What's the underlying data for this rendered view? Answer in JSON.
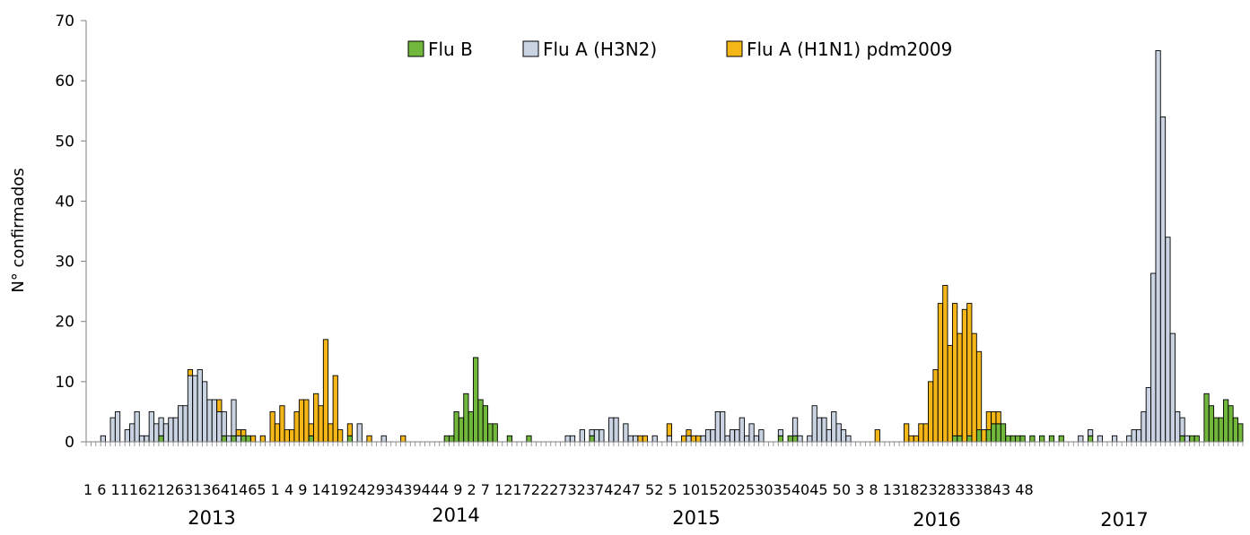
{
  "chart_data": {
    "type": "bar",
    "stacked": true,
    "title": "",
    "xlabel": "",
    "ylabel": "N° confirmados",
    "ylim": [
      0,
      70
    ],
    "y_ticks": [
      0,
      10,
      20,
      30,
      40,
      50,
      60,
      70
    ],
    "grid": false,
    "legend_position": "top-center",
    "x_tick_labels": [
      "1",
      "6",
      "11",
      "16",
      "21",
      "26",
      "31",
      "36",
      "41",
      "46",
      "51",
      "4",
      "9",
      "14",
      "19",
      "24",
      "29",
      "34",
      "39",
      "44",
      "49",
      "2",
      "7",
      "12",
      "17",
      "22",
      "27",
      "32",
      "37",
      "42",
      "47",
      "52",
      "5",
      "10",
      "15",
      "20",
      "25",
      "30",
      "35",
      "40",
      "45",
      "50",
      "3",
      "8",
      "13",
      "18",
      "23",
      "28",
      "33",
      "38",
      "43",
      "48"
    ],
    "x_tick_text": "1 6 11162126313641465 1 4 9 141924293439444 9 2 7 1217222732374247 52 5 1015202530354045 50 3 8 13182328333843 48",
    "year_labels": [
      "2013",
      "2014",
      "2015",
      "2016",
      "2017"
    ],
    "series": [
      {
        "name": "Flu B",
        "color": "#70b73c",
        "values": [
          0,
          0,
          0,
          0,
          0,
          0,
          0,
          0,
          0,
          0,
          0,
          0,
          0,
          0,
          0,
          1,
          0,
          0,
          0,
          0,
          0,
          0,
          0,
          0,
          0,
          0,
          0,
          0,
          1,
          0,
          1,
          0,
          1,
          1,
          0,
          0,
          0,
          0,
          0,
          0,
          0,
          0,
          0,
          0,
          0,
          0,
          1,
          0,
          0,
          0,
          0,
          0,
          0,
          0,
          1,
          0,
          0,
          0,
          0,
          0,
          0,
          0,
          0,
          0,
          0,
          0,
          0,
          0,
          0,
          0,
          0,
          0,
          0,
          0,
          1,
          1,
          5,
          4,
          8,
          5,
          14,
          7,
          6,
          3,
          3,
          0,
          0,
          1,
          0,
          0,
          0,
          1,
          0,
          0,
          0,
          0,
          0,
          0,
          0,
          0,
          0,
          0,
          0,
          0,
          1,
          0,
          0,
          0,
          0,
          0,
          0,
          0,
          0,
          0,
          0,
          0,
          0,
          0,
          0,
          0,
          0,
          0,
          0,
          0,
          0,
          0,
          0,
          0,
          0,
          0,
          0,
          0,
          0,
          0,
          0,
          0,
          0,
          0,
          0,
          0,
          0,
          0,
          0,
          1,
          0,
          1,
          1,
          0,
          0,
          0,
          0,
          0,
          0,
          0,
          0,
          0,
          0,
          0,
          0,
          0,
          0,
          0,
          0,
          0,
          0,
          0,
          0,
          0,
          0,
          0,
          0,
          0,
          0,
          0,
          0,
          0,
          0,
          0,
          0,
          1,
          1,
          0,
          1,
          0,
          2,
          0,
          2,
          3,
          3,
          3,
          1,
          1,
          1,
          1,
          0,
          1,
          0,
          1,
          0,
          1,
          0,
          1,
          0,
          0,
          0,
          0,
          0,
          1,
          0,
          0,
          0,
          0,
          0,
          0,
          0,
          0,
          0,
          0,
          0,
          0,
          0,
          0,
          0,
          0,
          0,
          0,
          1,
          0,
          1,
          1,
          0,
          8,
          6,
          4,
          4,
          7,
          6,
          4,
          3
        ]
      },
      {
        "name": "Flu A (H3N2)",
        "color": "#c9d3e2",
        "values": [
          0,
          0,
          0,
          1,
          0,
          4,
          5,
          0,
          2,
          3,
          5,
          1,
          1,
          5,
          3,
          3,
          3,
          4,
          4,
          6,
          6,
          11,
          11,
          12,
          10,
          7,
          7,
          5,
          4,
          1,
          6,
          1,
          0,
          0,
          0,
          0,
          0,
          0,
          0,
          0,
          0,
          0,
          0,
          0,
          0,
          0,
          0,
          0,
          0,
          0,
          0,
          0,
          0,
          0,
          0,
          0,
          3,
          0,
          0,
          0,
          0,
          1,
          0,
          0,
          0,
          0,
          0,
          0,
          0,
          0,
          0,
          0,
          0,
          0,
          0,
          0,
          0,
          0,
          0,
          0,
          0,
          0,
          0,
          0,
          0,
          0,
          0,
          0,
          0,
          0,
          0,
          0,
          0,
          0,
          0,
          0,
          0,
          0,
          0,
          1,
          1,
          0,
          2,
          0,
          1,
          2,
          2,
          0,
          4,
          4,
          0,
          3,
          1,
          1,
          0,
          0,
          0,
          1,
          0,
          0,
          1,
          0,
          0,
          0,
          1,
          0,
          0,
          1,
          2,
          2,
          5,
          5,
          1,
          2,
          2,
          4,
          1,
          3,
          1,
          2,
          0,
          0,
          0,
          1,
          0,
          0,
          3,
          1,
          0,
          1,
          6,
          4,
          4,
          2,
          5,
          3,
          2,
          1,
          0,
          0,
          0,
          0,
          0,
          0,
          0,
          0,
          0,
          0,
          0,
          0,
          0,
          0,
          0,
          0,
          0,
          0,
          0,
          0,
          0,
          0,
          0,
          0,
          0,
          0,
          0,
          0,
          0,
          0,
          0,
          0,
          0,
          0,
          0,
          0,
          0,
          0,
          0,
          0,
          0,
          0,
          0,
          0,
          0,
          0,
          0,
          1,
          0,
          1,
          0,
          1,
          0,
          0,
          1,
          0,
          0,
          1,
          2,
          2,
          5,
          9,
          28,
          65,
          54,
          34,
          18,
          5,
          3,
          1,
          0,
          0,
          0,
          0,
          0,
          0,
          0,
          0,
          0,
          0,
          0,
          0,
          0,
          0,
          0
        ]
      },
      {
        "name": "Flu A (H1N1) pdm2009",
        "color": "#f5b617",
        "values": [
          0,
          0,
          0,
          0,
          0,
          0,
          0,
          0,
          0,
          0,
          0,
          0,
          0,
          0,
          0,
          0,
          0,
          0,
          0,
          0,
          0,
          1,
          0,
          0,
          0,
          0,
          0,
          2,
          0,
          0,
          0,
          1,
          1,
          0,
          1,
          0,
          1,
          0,
          5,
          3,
          6,
          2,
          2,
          5,
          7,
          7,
          2,
          8,
          6,
          17,
          3,
          11,
          2,
          0,
          2,
          0,
          0,
          0,
          1,
          0,
          0,
          0,
          0,
          0,
          0,
          1,
          0,
          0,
          0,
          0,
          0,
          0,
          0,
          0,
          0,
          0,
          0,
          0,
          0,
          0,
          0,
          0,
          0,
          0,
          0,
          0,
          0,
          0,
          0,
          0,
          0,
          0,
          0,
          0,
          0,
          0,
          0,
          0,
          0,
          0,
          0,
          0,
          0,
          0,
          0,
          0,
          0,
          0,
          0,
          0,
          0,
          0,
          0,
          0,
          1,
          1,
          0,
          0,
          0,
          0,
          2,
          0,
          0,
          1,
          1,
          1,
          1,
          0,
          0,
          0,
          0,
          0,
          0,
          0,
          0,
          0,
          0,
          0,
          0,
          0,
          0,
          0,
          0,
          0,
          0,
          0,
          0,
          0,
          0,
          0,
          0,
          0,
          0,
          0,
          0,
          0,
          0,
          0,
          0,
          0,
          0,
          0,
          0,
          2,
          0,
          0,
          0,
          0,
          0,
          3,
          1,
          1,
          3,
          3,
          10,
          12,
          23,
          26,
          16,
          22,
          17,
          22,
          22,
          18,
          13,
          2,
          3,
          2,
          2,
          0,
          0,
          0,
          0,
          0,
          0,
          0,
          0,
          0,
          0,
          0,
          0,
          0,
          0,
          0,
          0,
          0,
          0,
          0,
          0,
          0,
          0,
          0,
          0,
          0,
          0,
          0,
          0,
          0,
          0,
          0,
          0,
          0,
          0,
          0,
          0,
          0,
          0,
          0,
          0,
          0,
          0,
          0,
          0,
          0,
          0,
          0,
          0,
          0,
          0,
          0,
          0,
          0,
          0,
          0,
          0,
          0
        ]
      }
    ]
  }
}
